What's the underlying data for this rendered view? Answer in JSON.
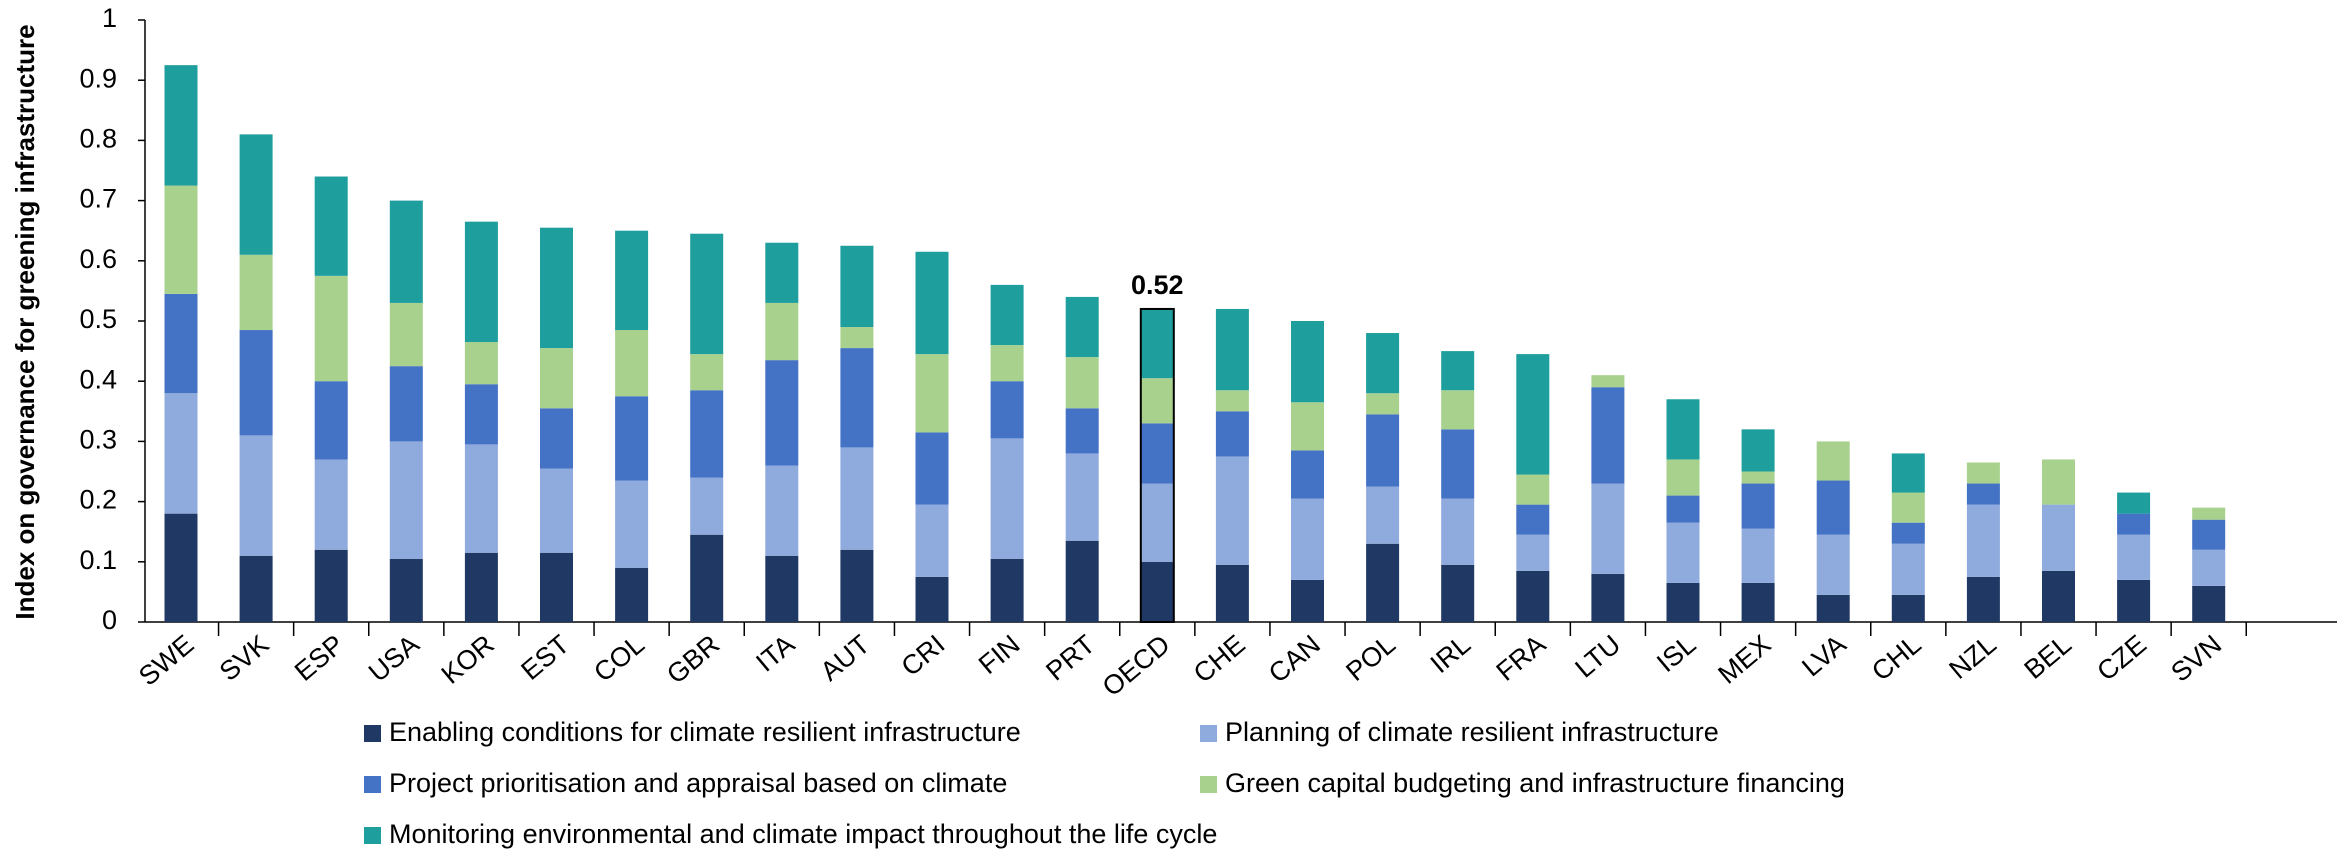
{
  "chart_data": {
    "type": "stacked_bar",
    "y_label": "Index on governance for greening infrastructure",
    "categories": [
      "SWE",
      "SVK",
      "ESP",
      "USA",
      "KOR",
      "EST",
      "COL",
      "GBR",
      "ITA",
      "AUT",
      "CRI",
      "FIN",
      "PRT",
      "OECD",
      "CHE",
      "CAN",
      "POL",
      "IRL",
      "FRA",
      "LTU",
      "ISL",
      "MEX",
      "LVA",
      "CHL",
      "NZL",
      "BEL",
      "CZE",
      "SVN"
    ],
    "series": [
      {
        "name": "Enabling conditions for climate resilient infrastructure",
        "color": "#203864",
        "values": [
          0.18,
          0.11,
          0.12,
          0.105,
          0.115,
          0.115,
          0.09,
          0.145,
          0.11,
          0.12,
          0.075,
          0.105,
          0.135,
          0.1,
          0.095,
          0.07,
          0.13,
          0.095,
          0.085,
          0.08,
          0.065,
          0.065,
          0.045,
          0.045,
          0.075,
          0.085,
          0.07,
          0.06
        ]
      },
      {
        "name": "Planning of climate resilient infrastructure",
        "color": "#8faadc",
        "values": [
          0.2,
          0.2,
          0.15,
          0.195,
          0.18,
          0.14,
          0.145,
          0.095,
          0.15,
          0.17,
          0.12,
          0.2,
          0.145,
          0.13,
          0.18,
          0.135,
          0.095,
          0.11,
          0.06,
          0.15,
          0.1,
          0.09,
          0.1,
          0.085,
          0.12,
          0.11,
          0.075,
          0.06
        ]
      },
      {
        "name": "Project prioritisation and appraisal based on climate",
        "color": "#4472c4",
        "values": [
          0.165,
          0.175,
          0.13,
          0.125,
          0.1,
          0.1,
          0.14,
          0.145,
          0.175,
          0.165,
          0.12,
          0.095,
          0.075,
          0.1,
          0.075,
          0.08,
          0.12,
          0.115,
          0.05,
          0.16,
          0.045,
          0.075,
          0.09,
          0.035,
          0.035,
          0,
          0.035,
          0.05
        ]
      },
      {
        "name": "Green capital budgeting and infrastructure financing",
        "color": "#a9d18e",
        "values": [
          0.18,
          0.125,
          0.175,
          0.105,
          0.07,
          0.1,
          0.11,
          0.06,
          0.095,
          0.035,
          0.13,
          0.06,
          0.085,
          0.075,
          0.035,
          0.08,
          0.035,
          0.065,
          0.05,
          0.02,
          0.06,
          0.02,
          0.065,
          0.05,
          0.035,
          0.075,
          0,
          0.02
        ]
      },
      {
        "name": "Monitoring environmental and climate impact throughout the life cycle",
        "color": "#1f9e9e",
        "values": [
          0.2,
          0.2,
          0.165,
          0.17,
          0.2,
          0.2,
          0.165,
          0.2,
          0.1,
          0.135,
          0.17,
          0.1,
          0.1,
          0.115,
          0.135,
          0.135,
          0.1,
          0.065,
          0.2,
          0,
          0.1,
          0.07,
          0,
          0.065,
          0,
          0,
          0.035,
          0
        ]
      }
    ],
    "annotation": {
      "category": 13,
      "text": "0.52"
    },
    "ylim": [
      0,
      1
    ],
    "yticks": [
      0,
      {
        "value": 0.1,
        "label": "0.1"
      },
      {
        "value": 0.2,
        "label": "0.2"
      },
      {
        "value": 0.3,
        "label": "0.3"
      },
      {
        "value": 0.4,
        "label": "0.4"
      },
      {
        "value": 0.5,
        "label": "0.5"
      },
      {
        "value": 0.6,
        "label": "0.6"
      },
      {
        "value": 0.7,
        "label": "0.7"
      },
      {
        "value": 0.8,
        "label": "0.8"
      },
      {
        "value": 0.9,
        "label": "0.9"
      },
      1
    ]
  }
}
